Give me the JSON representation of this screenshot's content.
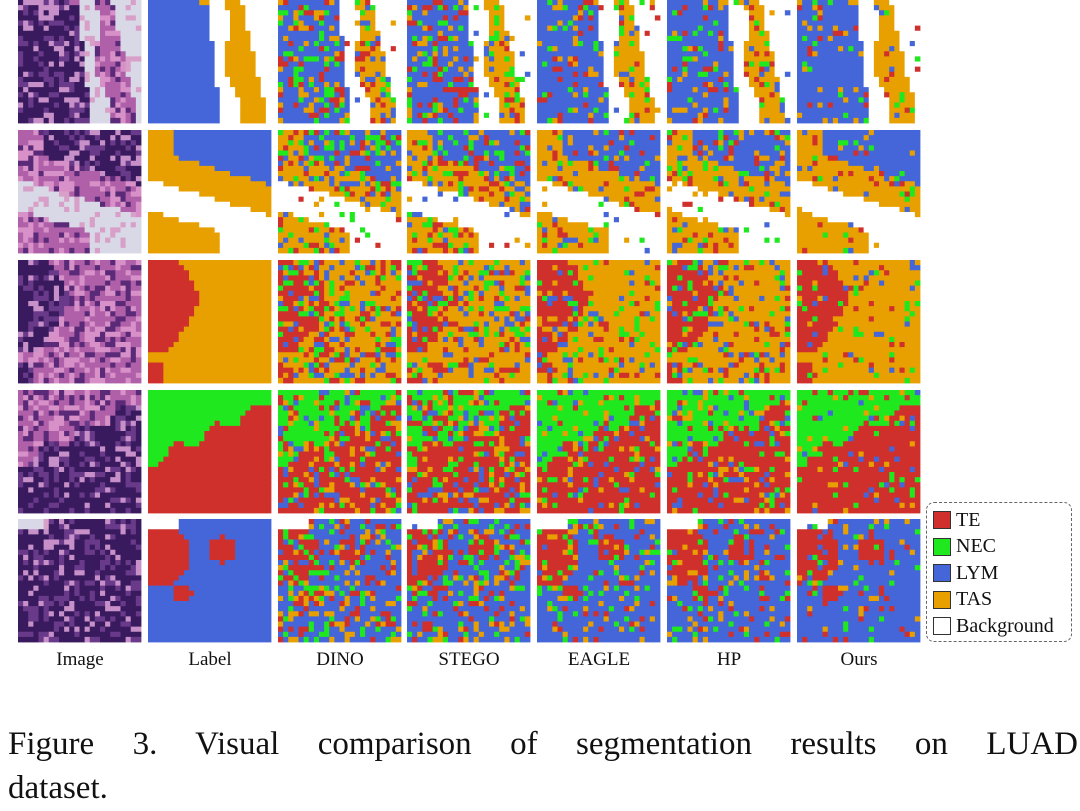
{
  "figure": {
    "columns": [
      "Image",
      "Label",
      "DINO",
      "STEGO",
      "EAGLE",
      "HP",
      "Ours"
    ],
    "legend": [
      {
        "label": "TE",
        "color": "#d0302c"
      },
      {
        "label": "NEC",
        "color": "#1fe81f"
      },
      {
        "label": "LYM",
        "color": "#4466d8"
      },
      {
        "label": "TAS",
        "color": "#e8a000"
      },
      {
        "label": "Background",
        "color": "#ffffff"
      }
    ],
    "caption_line1": "Figure 3.  Visual comparison of segmentation results on LUAD",
    "caption_line2": "dataset."
  }
}
